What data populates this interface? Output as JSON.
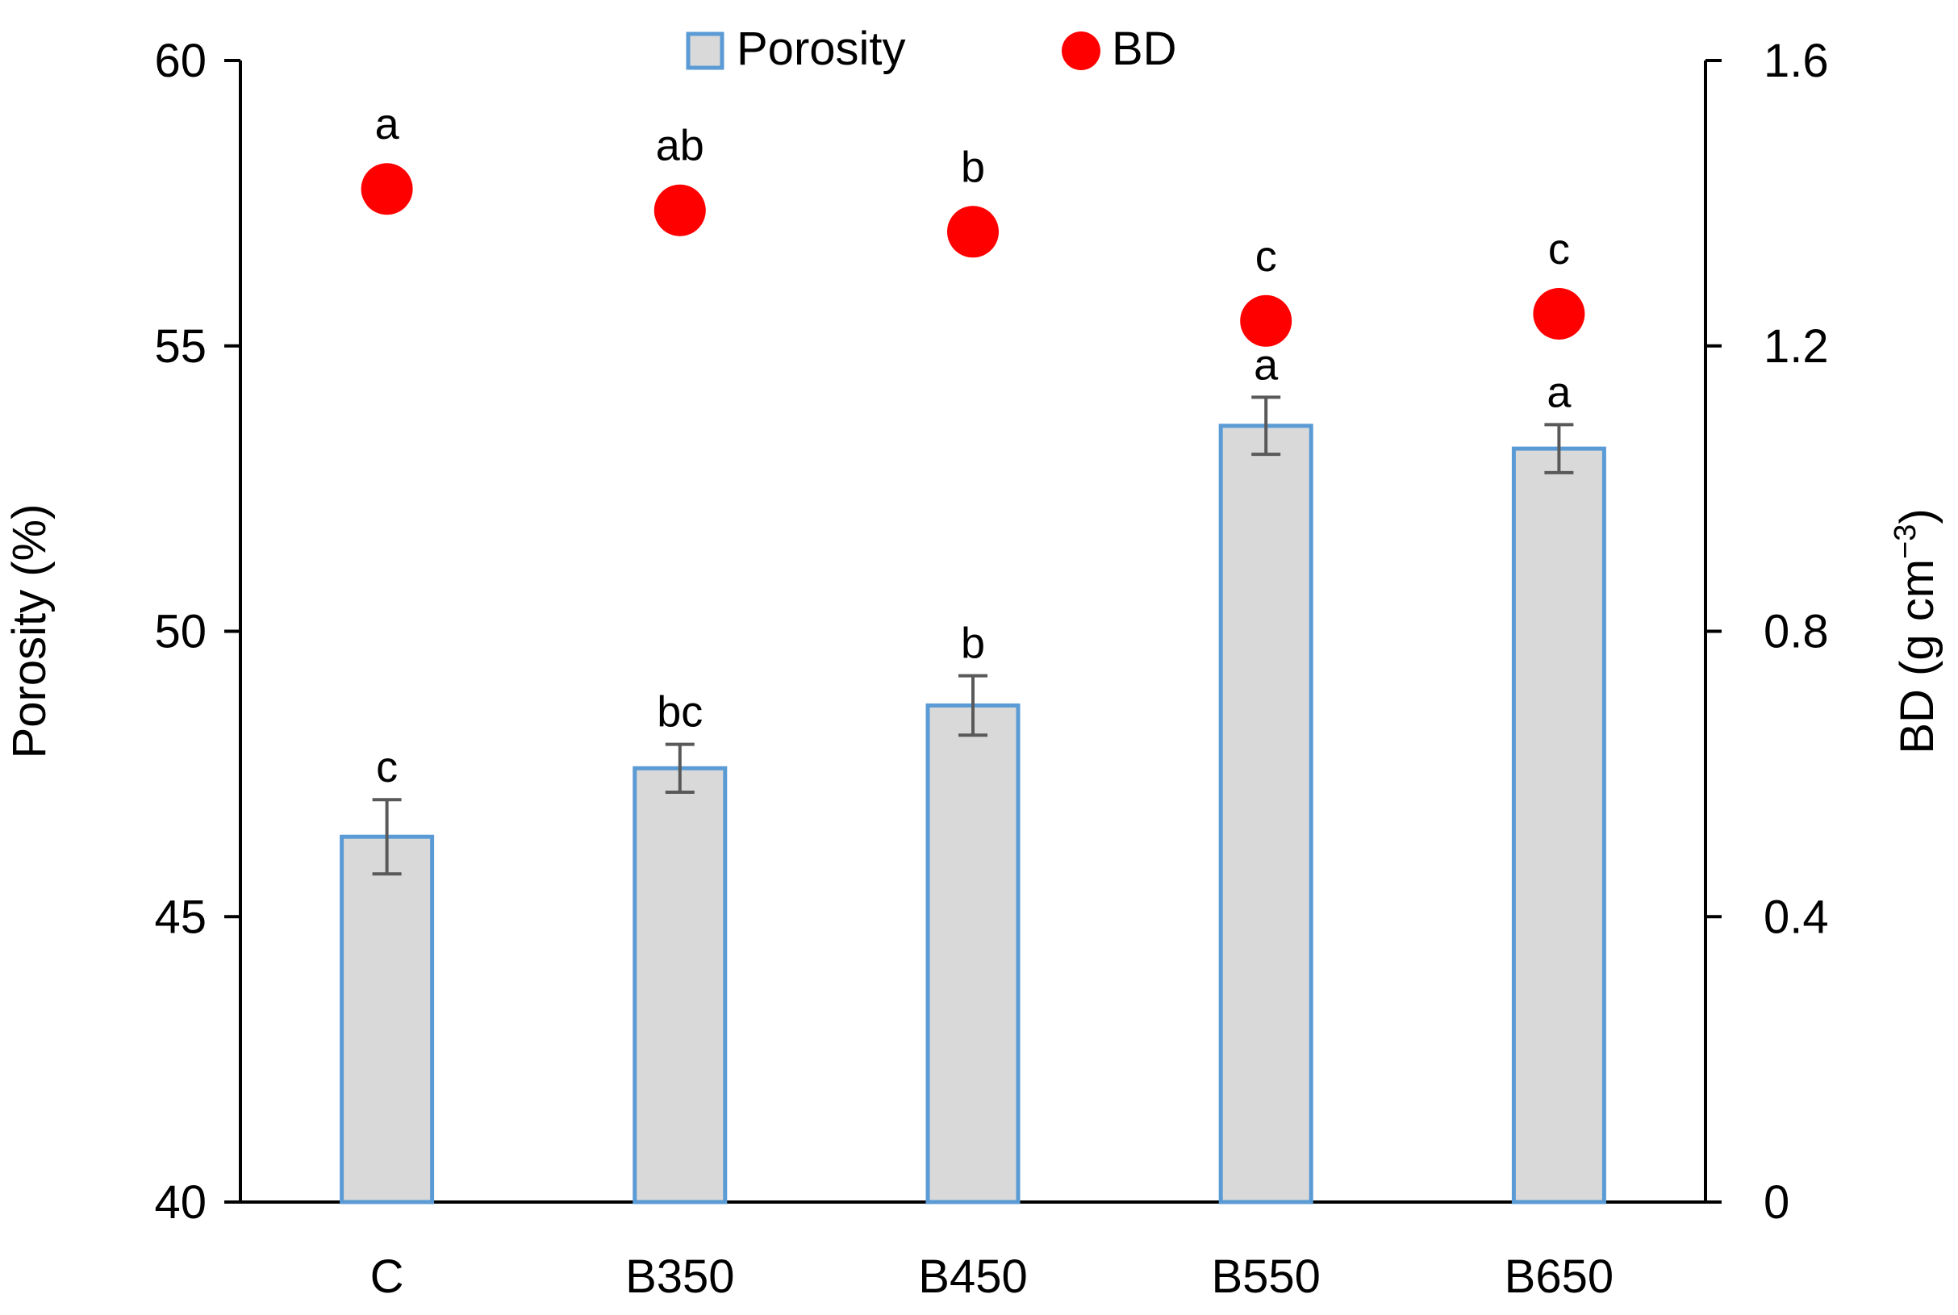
{
  "chart_data": {
    "type": "bar+scatter",
    "categories": [
      "C",
      "B350",
      "B450",
      "B550",
      "B650"
    ],
    "series": [
      {
        "name": "Porosity",
        "axis": "left",
        "kind": "bar",
        "values": [
          46.4,
          47.6,
          48.7,
          53.6,
          53.2
        ],
        "errors": [
          0.65,
          0.42,
          0.52,
          0.5,
          0.42
        ],
        "letters": [
          "c",
          "bc",
          "b",
          "a",
          "a"
        ],
        "fill": "#d9d9d9",
        "stroke": "#5b9bd5"
      },
      {
        "name": "BD",
        "axis": "right",
        "kind": "scatter",
        "values": [
          1.42,
          1.39,
          1.36,
          1.235,
          1.245
        ],
        "letters": [
          "a",
          "ab",
          "b",
          "c",
          "c"
        ],
        "color": "#ff0000"
      }
    ],
    "left_axis": {
      "title": "Porosity (%)",
      "min": 40,
      "max": 60,
      "ticks": [
        40,
        45,
        50,
        55,
        60
      ],
      "tick_labels": [
        "40",
        "45",
        "50",
        "55",
        "60"
      ]
    },
    "right_axis": {
      "title_main": "BD (g cm",
      "title_sup": "−3",
      "title_close": ")",
      "min": 0,
      "max": 1.6,
      "ticks": [
        0,
        0.4,
        0.8,
        1.2,
        1.6
      ],
      "tick_labels": [
        "0",
        "0.4",
        "0.8",
        "1.2",
        "1.6"
      ]
    },
    "legend": {
      "position": "top-center",
      "items": [
        {
          "label": "Porosity",
          "marker": "bar"
        },
        {
          "label": "BD",
          "marker": "circle"
        }
      ]
    },
    "error_bar_color": "#595959",
    "axis_color": "#000000",
    "grid": false
  }
}
